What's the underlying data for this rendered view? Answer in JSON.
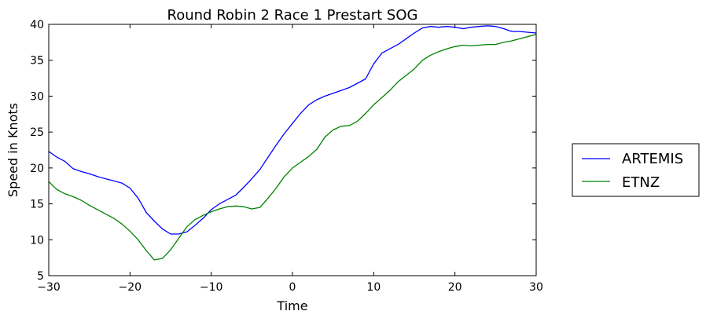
{
  "chart_data": {
    "type": "line",
    "title": "Round Robin 2 Race 1 Prestart SOG",
    "xlabel": "Time",
    "ylabel": "Speed in Knots",
    "xlim": [
      -30,
      30
    ],
    "ylim": [
      5,
      40
    ],
    "xticks": [
      -30,
      -20,
      -10,
      0,
      10,
      20,
      30
    ],
    "yticks": [
      5,
      10,
      15,
      20,
      25,
      30,
      35,
      40
    ],
    "xtick_labels": [
      "−30",
      "−20",
      "−10",
      "0",
      "10",
      "20",
      "30"
    ],
    "ytick_labels": [
      "5",
      "10",
      "15",
      "20",
      "25",
      "30",
      "35",
      "40"
    ],
    "grid": false,
    "legend_position": "outside-right",
    "series": [
      {
        "name": "ARTEMIS",
        "color": "#0000ff",
        "x": [
          -30,
          -29,
          -28,
          -27,
          -26,
          -25,
          -24,
          -23,
          -22,
          -21,
          -20,
          -19,
          -18,
          -17,
          -16,
          -15,
          -14,
          -13,
          -12,
          -11,
          -10,
          -9,
          -8,
          -7,
          -6,
          -5,
          -4,
          -3,
          -2,
          -1,
          0,
          1,
          2,
          3,
          4,
          5,
          6,
          7,
          8,
          9,
          10,
          11,
          12,
          13,
          14,
          15,
          16,
          17,
          18,
          19,
          20,
          21,
          22,
          23,
          24,
          25,
          26,
          27,
          28,
          29,
          30
        ],
        "y": [
          22.3,
          21.5,
          20.9,
          19.9,
          19.5,
          19.2,
          18.8,
          18.5,
          18.2,
          17.9,
          17.2,
          15.8,
          13.8,
          12.6,
          11.5,
          10.8,
          10.8,
          11.1,
          12.0,
          13.0,
          14.2,
          15.0,
          15.6,
          16.2,
          17.3,
          18.5,
          19.8,
          21.5,
          23.2,
          24.8,
          26.2,
          27.6,
          28.8,
          29.5,
          30.0,
          30.4,
          30.8,
          31.2,
          31.8,
          32.4,
          34.5,
          36.0,
          36.6,
          37.2,
          38.0,
          38.8,
          39.5,
          39.7,
          39.6,
          39.7,
          39.6,
          39.4,
          39.6,
          39.7,
          39.8,
          39.7,
          39.4,
          39.0,
          39.0,
          38.9,
          38.8
        ]
      },
      {
        "name": "ETNZ",
        "color": "#008000",
        "x": [
          -30,
          -29,
          -28,
          -27,
          -26,
          -25,
          -24,
          -23,
          -22,
          -21,
          -20,
          -19,
          -18,
          -17,
          -16,
          -15,
          -14,
          -13,
          -12,
          -11,
          -10,
          -9,
          -8,
          -7,
          -6,
          -5,
          -4,
          -3,
          -2,
          -1,
          0,
          1,
          2,
          3,
          4,
          5,
          6,
          7,
          8,
          9,
          10,
          11,
          12,
          13,
          14,
          15,
          16,
          17,
          18,
          19,
          20,
          21,
          22,
          23,
          24,
          25,
          26,
          27,
          28,
          29,
          30
        ],
        "y": [
          18.1,
          17.0,
          16.4,
          16.0,
          15.5,
          14.8,
          14.2,
          13.6,
          13.0,
          12.2,
          11.2,
          10.0,
          8.5,
          7.2,
          7.4,
          8.6,
          10.2,
          11.8,
          12.8,
          13.4,
          13.9,
          14.3,
          14.6,
          14.7,
          14.6,
          14.3,
          14.5,
          15.8,
          17.2,
          18.8,
          20.0,
          20.8,
          21.6,
          22.6,
          24.3,
          25.3,
          25.8,
          25.9,
          26.5,
          27.6,
          28.8,
          29.8,
          30.8,
          32.0,
          32.9,
          33.8,
          35.0,
          35.7,
          36.2,
          36.6,
          36.9,
          37.1,
          37.0,
          37.1,
          37.2,
          37.2,
          37.5,
          37.7,
          38.0,
          38.3,
          38.6
        ]
      }
    ]
  }
}
